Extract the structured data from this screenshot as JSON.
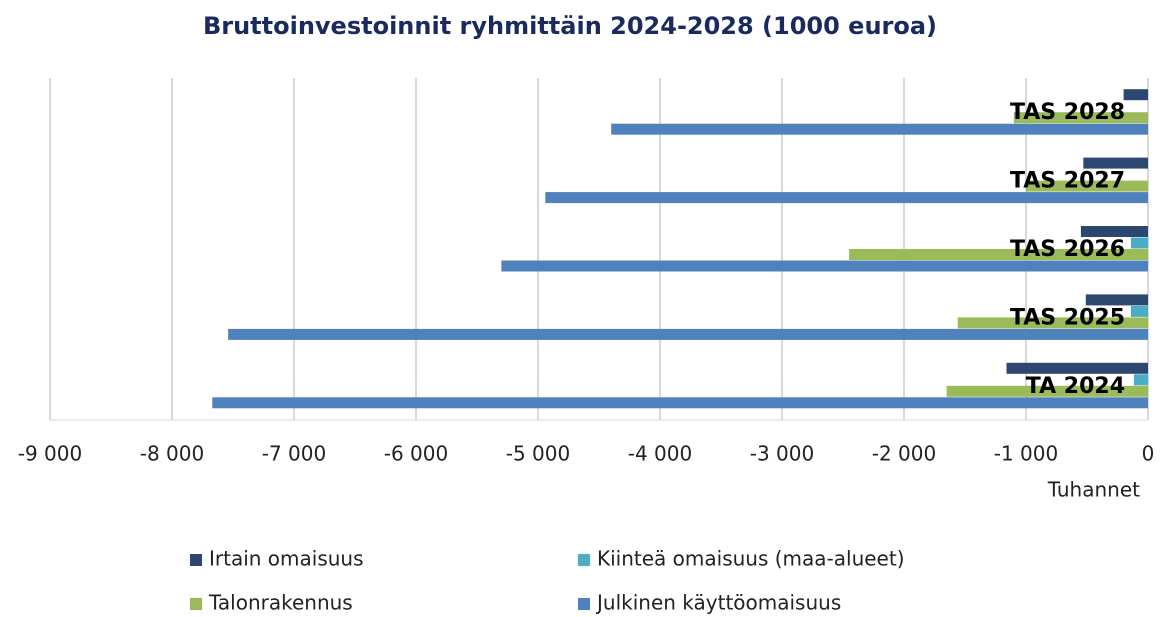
{
  "chart_data": {
    "type": "hbar",
    "title": "Bruttoinvestoinnit ryhmittäin 2024-2028 (1000 euroa)",
    "x_label": "Tuhannet",
    "categories": [
      "TA 2024",
      "TAS 2025",
      "TAS 2026",
      "TAS 2027",
      "TAS 2028"
    ],
    "series": [
      {
        "name": "Irtain omaisuus",
        "color": "#2c4770",
        "values": [
          -1160,
          -510,
          -550,
          -530,
          -200
        ]
      },
      {
        "name": "Kiinteä omaisuus (maa-alueet)",
        "color": "#4bacc6",
        "values": [
          -115,
          -140,
          -140,
          0,
          0
        ]
      },
      {
        "name": "Talonrakennus",
        "color": "#9bbb59",
        "values": [
          -1650,
          -1560,
          -2450,
          -1000,
          -1100
        ]
      },
      {
        "name": "Julkinen käyttöomaisuus",
        "color": "#4f81bd",
        "values": [
          -7670,
          -7540,
          -5300,
          -4940,
          -4400
        ]
      }
    ],
    "xlim": [
      -9000,
      0
    ],
    "xticks": [
      {
        "value": -9000,
        "label": "-9 000"
      },
      {
        "value": -8000,
        "label": "-8 000"
      },
      {
        "value": -7000,
        "label": "-7 000"
      },
      {
        "value": -6000,
        "label": "-6 000"
      },
      {
        "value": -5000,
        "label": "-5 000"
      },
      {
        "value": -4000,
        "label": "-4 000"
      },
      {
        "value": -3000,
        "label": "-3 000"
      },
      {
        "value": -2000,
        "label": "-2 000"
      },
      {
        "value": -1000,
        "label": "-1 000"
      },
      0
    ],
    "grid": true
  }
}
